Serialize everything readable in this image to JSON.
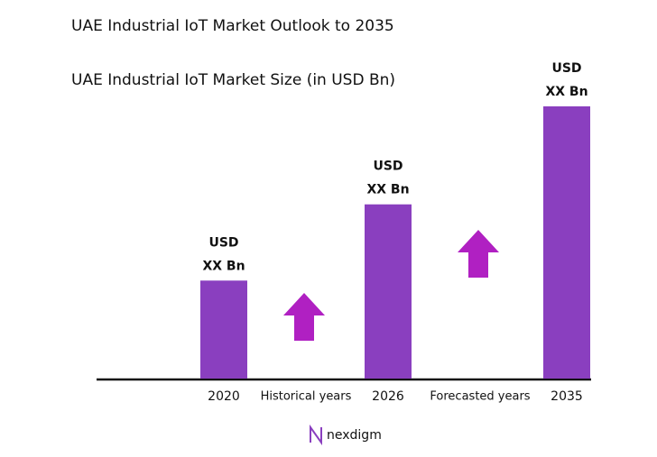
{
  "chart_data": {
    "type": "bar",
    "title": "UAE Industrial IoT Market Outlook to 2035",
    "subtitle": "UAE Industrial IoT Market Size (in USD Bn)",
    "categories": [
      "2020",
      "2026",
      "2035"
    ],
    "values": [
      36,
      64,
      100
    ],
    "value_labels": [
      [
        "USD",
        "XX Bn"
      ],
      [
        "USD",
        "XX Bn"
      ],
      [
        "USD",
        "XX Bn"
      ]
    ],
    "color": "#8a3fbf",
    "ylim": [
      0,
      100
    ],
    "annotations": [
      "Historical years",
      "Forecasted years"
    ],
    "arrow_color": "#b020c2",
    "brand": "nexdigm"
  }
}
